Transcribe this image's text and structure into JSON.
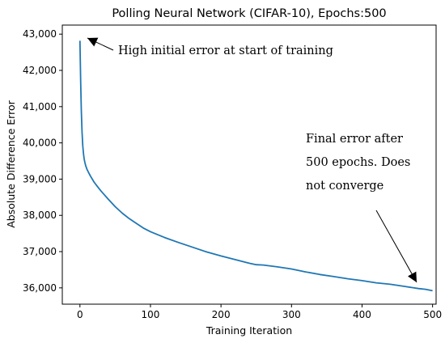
{
  "chart_data": {
    "type": "line",
    "title": "Polling Neural Network (CIFAR-10), Epochs:500",
    "xlabel": "Training Iteration",
    "ylabel": "Absolute Difference Error",
    "xlim": [
      -25,
      505
    ],
    "ylim": [
      35550,
      43250
    ],
    "xticks": [
      0,
      100,
      200,
      300,
      400,
      500
    ],
    "yticks": [
      36000,
      37000,
      38000,
      39000,
      40000,
      41000,
      42000,
      43000
    ],
    "xtick_labels": [
      "0",
      "100",
      "200",
      "300",
      "400",
      "500"
    ],
    "ytick_labels": [
      "36,000",
      "37,000",
      "38,000",
      "39,000",
      "40,000",
      "41,000",
      "42,000",
      "43,000"
    ],
    "grid": false,
    "legend": false,
    "line_color": "#1f77b4",
    "series": [
      {
        "x": [
          0,
          1,
          2,
          3,
          4,
          5,
          6,
          7,
          8,
          10,
          12,
          15,
          20,
          25,
          30,
          40,
          50,
          60,
          70,
          80,
          90,
          100,
          120,
          140,
          160,
          180,
          200,
          220,
          240,
          250,
          260,
          280,
          300,
          320,
          340,
          360,
          380,
          400,
          420,
          440,
          460,
          480,
          490,
          500
        ],
        "y": [
          42820,
          41700,
          40900,
          40300,
          39920,
          39700,
          39560,
          39460,
          39380,
          39270,
          39190,
          39080,
          38920,
          38790,
          38670,
          38450,
          38240,
          38060,
          37910,
          37780,
          37650,
          37550,
          37390,
          37250,
          37120,
          36990,
          36880,
          36780,
          36680,
          36640,
          36630,
          36580,
          36520,
          36440,
          36370,
          36310,
          36250,
          36200,
          36140,
          36100,
          36040,
          35980,
          35960,
          35920
        ]
      }
    ],
    "annotations": [
      {
        "text": "High initial error at start of training",
        "arrow_to": [
          2,
          42820
        ]
      },
      {
        "lines": [
          "Final  error  after",
          "500 epochs. Does",
          "not converge"
        ],
        "arrow_to": [
          500,
          35920
        ]
      }
    ]
  }
}
